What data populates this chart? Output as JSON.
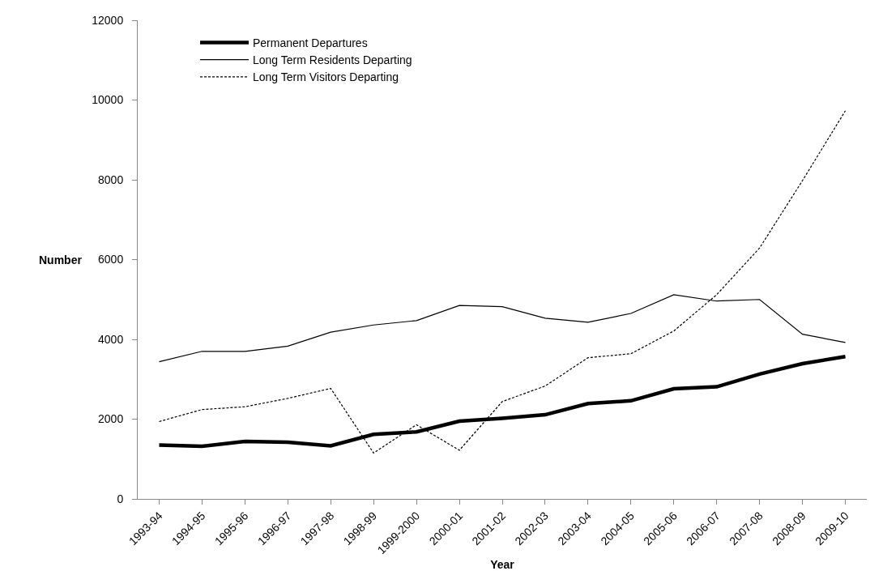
{
  "chart_data": {
    "type": "line",
    "xlabel": "Year",
    "ylabel": "Number",
    "categories": [
      "1993-94",
      "1994-95",
      "1995-96",
      "1996-97",
      "1997-98",
      "1998-99",
      "1999-2000",
      "2000-01",
      "2001-02",
      "2002-03",
      "2003-04",
      "2004-05",
      "2005-06",
      "2006-07",
      "2007-08",
      "2008-09",
      "2009-10"
    ],
    "series": [
      {
        "name": "Permanent Departures",
        "color": "#000000",
        "line_style": "solid",
        "values": [
          1350,
          1320,
          1440,
          1420,
          1330,
          1620,
          1680,
          1950,
          2020,
          2110,
          2390,
          2460,
          2760,
          2810,
          3130,
          3390,
          3570
        ]
      },
      {
        "name": "Long Term Residents Departing",
        "color": "#000000",
        "line_style": "solid",
        "values": [
          3440,
          3700,
          3700,
          3830,
          4180,
          4360,
          4470,
          4850,
          4820,
          4530,
          4430,
          4650,
          5120,
          4960,
          5000,
          4130,
          3920
        ]
      },
      {
        "name": "Long Term Visitors Departing",
        "color": "#000000",
        "line_style": "dashed",
        "values": [
          1940,
          2240,
          2310,
          2520,
          2770,
          1150,
          1860,
          1220,
          2440,
          2830,
          3540,
          3640,
          4210,
          5120,
          6290,
          7980,
          9730
        ]
      }
    ],
    "ylim": [
      0,
      12000
    ],
    "yticks": [
      0,
      2000,
      4000,
      6000,
      8000,
      10000,
      12000
    ],
    "legend": "top left",
    "marker": "none"
  }
}
